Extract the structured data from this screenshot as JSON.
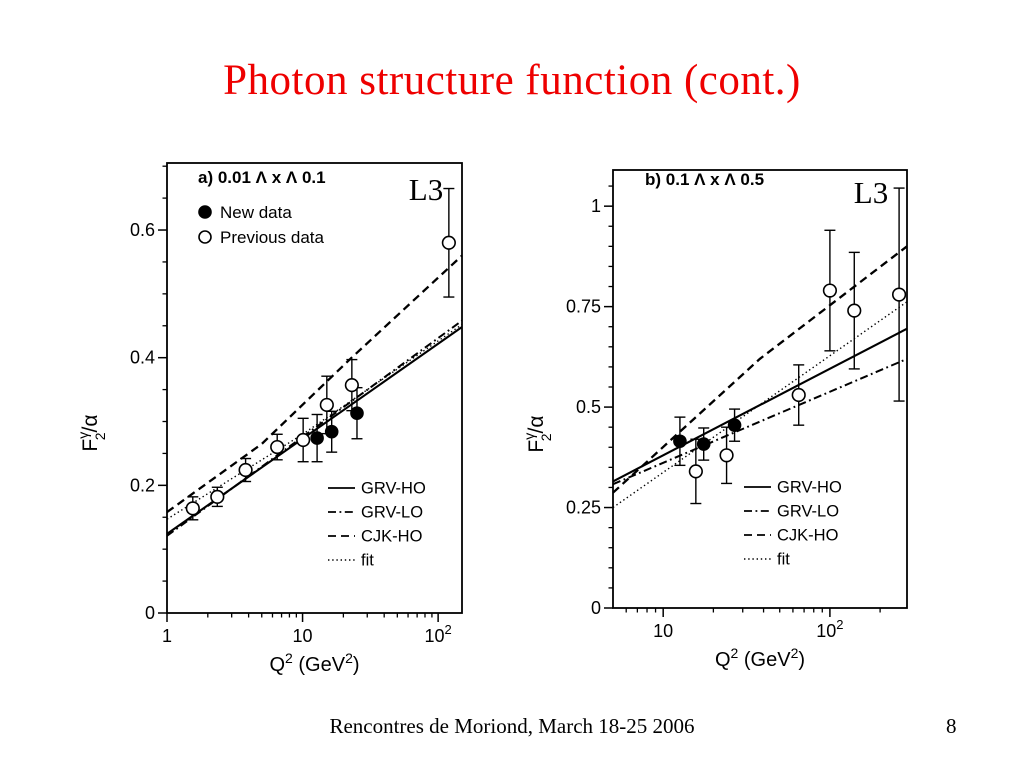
{
  "slide": {
    "title": "Photon structure function (cont.)",
    "title_color": "#ee0000",
    "footer": "Rencontres de Moriond, March 18-25 2006",
    "page_number": "8"
  },
  "chart_data": [
    {
      "type": "scatter",
      "panel_label": "a)  0.01 Λ x Λ 0.1",
      "experiment_label": "L3",
      "xlabel_text": "Q² (GeV²)",
      "ylabel_text": "F₂^γ/α",
      "xlabel_segments": [
        {
          "t": "Q"
        },
        {
          "t": "2",
          "sup": true
        },
        {
          "t": " (GeV"
        },
        {
          "t": "2",
          "sup": true
        },
        {
          "t": ")"
        }
      ],
      "ylabel_parts": {
        "base": "F",
        "sup": "γ",
        "sub": "2",
        "rest": "/α"
      },
      "x_axis": {
        "scale": "log",
        "min": 1,
        "max": 150,
        "major_ticks": [
          1,
          10,
          100
        ],
        "major_labels": [
          "1",
          "10",
          "10^2"
        ]
      },
      "y_axis": {
        "min": 0,
        "max": 0.705,
        "major_ticks": [
          0,
          0.2,
          0.4,
          0.6
        ],
        "major_labels": [
          "0",
          "0.2",
          "0.4",
          "0.6"
        ],
        "minor_step": 0.05
      },
      "data_legend": true,
      "series": [
        {
          "name": "New data",
          "marker": "filled-circle",
          "points": [
            {
              "q2": 12.8,
              "f2": 0.274,
              "err": 0.037
            },
            {
              "q2": 16.4,
              "f2": 0.284,
              "err": 0.032
            },
            {
              "q2": 25.2,
              "f2": 0.313,
              "err": 0.04
            }
          ]
        },
        {
          "name": "Previous data",
          "marker": "open-circle",
          "points": [
            {
              "q2": 1.55,
              "f2": 0.164,
              "err": 0.018
            },
            {
              "q2": 2.35,
              "f2": 0.182,
              "err": 0.015
            },
            {
              "q2": 3.8,
              "f2": 0.224,
              "err": 0.018
            },
            {
              "q2": 6.5,
              "f2": 0.26,
              "err": 0.02
            },
            {
              "q2": 10.1,
              "f2": 0.271,
              "err": 0.034
            },
            {
              "q2": 15.1,
              "f2": 0.326,
              "err": 0.045
            },
            {
              "q2": 23.1,
              "f2": 0.357,
              "err": 0.04
            },
            {
              "q2": 120,
              "f2": 0.58,
              "err": 0.085
            }
          ]
        }
      ],
      "curves": [
        {
          "name": "GRV-HO",
          "style": "solid",
          "points": [
            [
              1,
              0.124
            ],
            [
              150,
              0.448
            ]
          ]
        },
        {
          "name": "GRV-LO",
          "style": "dashdot",
          "points": [
            [
              1,
              0.121
            ],
            [
              150,
              0.458
            ]
          ]
        },
        {
          "name": "CJK-HO",
          "style": "dashed",
          "points": [
            [
              1,
              0.158
            ],
            [
              5,
              0.265
            ],
            [
              23,
              0.4
            ],
            [
              150,
              0.56
            ]
          ]
        },
        {
          "name": "fit",
          "style": "dotted",
          "points": [
            [
              1,
              0.147
            ],
            [
              10,
              0.28
            ],
            [
              150,
              0.452
            ]
          ]
        }
      ]
    },
    {
      "type": "scatter",
      "panel_label": "b) 0.1 Λ x Λ 0.5",
      "experiment_label": "L3",
      "xlabel_text": "Q² (GeV²)",
      "ylabel_text": "F₂^γ/α",
      "xlabel_segments": [
        {
          "t": "Q"
        },
        {
          "t": "2",
          "sup": true
        },
        {
          "t": " (GeV"
        },
        {
          "t": "2",
          "sup": true
        },
        {
          "t": ")"
        }
      ],
      "ylabel_parts": {
        "base": "F",
        "sup": "γ",
        "sub": "2",
        "rest": "/α"
      },
      "x_axis": {
        "scale": "log",
        "min": 5,
        "max": 290,
        "major_ticks": [
          10,
          100
        ],
        "major_labels": [
          "10",
          "10^2"
        ]
      },
      "y_axis": {
        "min": 0,
        "max": 1.09,
        "major_ticks": [
          0,
          0.25,
          0.5,
          0.75,
          1
        ],
        "major_labels": [
          "0",
          "0.25",
          "0.5",
          "0.75",
          "1"
        ],
        "minor_step": 0.05
      },
      "data_legend": false,
      "series": [
        {
          "name": "New data",
          "marker": "filled-circle",
          "points": [
            {
              "q2": 12.6,
              "f2": 0.415,
              "err": 0.06
            },
            {
              "q2": 17.5,
              "f2": 0.408,
              "err": 0.04
            },
            {
              "q2": 26.8,
              "f2": 0.455,
              "err": 0.04
            }
          ]
        },
        {
          "name": "Previous data",
          "marker": "open-circle",
          "points": [
            {
              "q2": 15.7,
              "f2": 0.34,
              "err": 0.08
            },
            {
              "q2": 24,
              "f2": 0.38,
              "err": 0.07
            },
            {
              "q2": 65,
              "f2": 0.53,
              "err": 0.075
            },
            {
              "q2": 100,
              "f2": 0.79,
              "err": 0.15
            },
            {
              "q2": 140,
              "f2": 0.74,
              "err": 0.145
            },
            {
              "q2": 260,
              "f2": 0.78,
              "err": 0.265
            }
          ]
        }
      ],
      "curves": [
        {
          "name": "GRV-HO",
          "style": "solid",
          "points": [
            [
              5,
              0.315
            ],
            [
              290,
              0.695
            ]
          ]
        },
        {
          "name": "GRV-LO",
          "style": "dashdot",
          "points": [
            [
              5,
              0.308
            ],
            [
              290,
              0.62
            ]
          ]
        },
        {
          "name": "CJK-HO",
          "style": "dashed",
          "points": [
            [
              5,
              0.287
            ],
            [
              38,
              0.62
            ],
            [
              290,
              0.9
            ]
          ]
        },
        {
          "name": "fit",
          "style": "dotted",
          "points": [
            [
              5,
              0.25
            ],
            [
              290,
              0.762
            ]
          ]
        }
      ]
    }
  ]
}
